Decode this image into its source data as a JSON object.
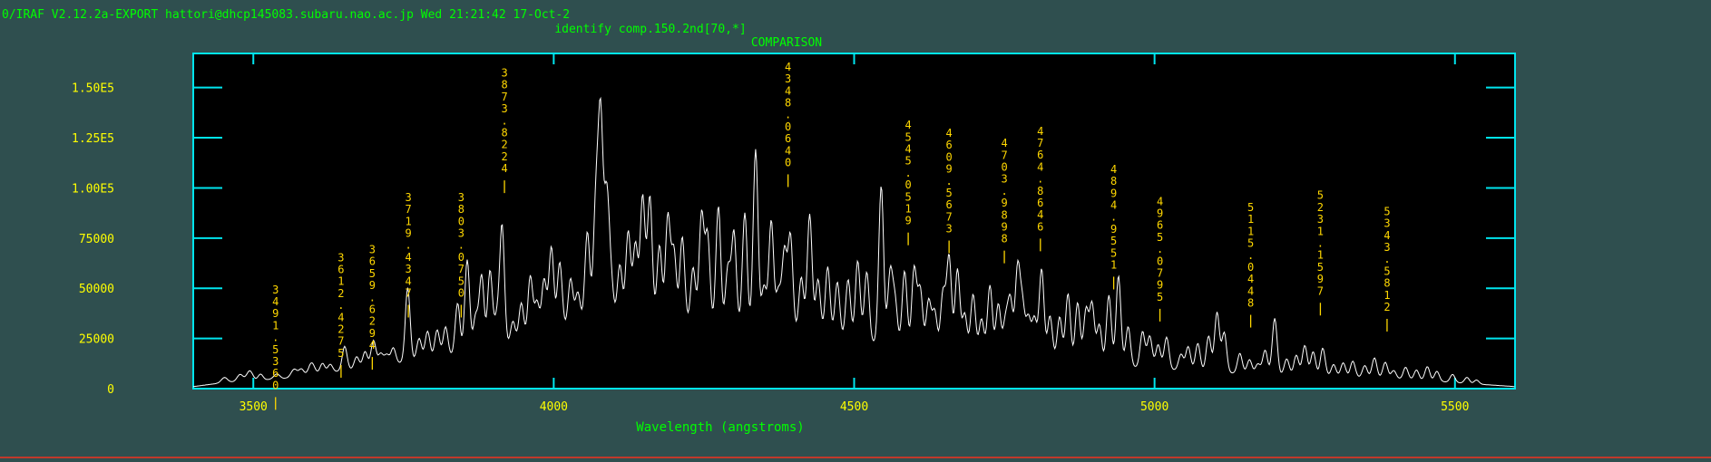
{
  "header": {
    "status_line": "0/IRAF V2.12.2a-EXPORT hattori@dhcp145083.subaru.nao.ac.jp Wed 21:21:42 17-Oct-2",
    "command": "identify comp.150.2nd[70,*]"
  },
  "colors": {
    "background": "#2f4f4f",
    "frame": "#00e5ee",
    "plot_bg": "#000000",
    "spectrum": "#ffffff",
    "header_text": "#00ff00",
    "tick_labels": "#ffff00",
    "line_labels": "#ffd700"
  },
  "chart_data": {
    "type": "line",
    "title": "COMPARISON",
    "xlabel": "Wavelength (angstroms)",
    "ylabel": "",
    "xlim": [
      3400,
      5600
    ],
    "ylim": [
      0,
      167000
    ],
    "x_ticks": [
      3500,
      4000,
      4500,
      5000,
      5500
    ],
    "x_tick_labels": [
      "3500",
      "4000",
      "4500",
      "5000",
      "5500"
    ],
    "y_ticks": [
      0,
      25000,
      50000,
      75000,
      100000,
      125000,
      150000
    ],
    "y_tick_labels": [
      "0",
      "25000",
      "50000",
      "75000",
      "1.00E5",
      "1.25E5",
      "1.50E5"
    ],
    "baseline": [
      [
        3400,
        1000
      ],
      [
        3450,
        3000
      ],
      [
        3500,
        4000
      ],
      [
        3550,
        5000
      ],
      [
        3600,
        7000
      ],
      [
        3650,
        9000
      ],
      [
        3700,
        11000
      ],
      [
        3750,
        13000
      ],
      [
        3800,
        15000
      ],
      [
        3850,
        17000
      ],
      [
        3900,
        19000
      ],
      [
        3950,
        23000
      ],
      [
        4000,
        28000
      ],
      [
        4050,
        33000
      ],
      [
        4100,
        35000
      ],
      [
        4150,
        34000
      ],
      [
        4200,
        33000
      ],
      [
        4250,
        32000
      ],
      [
        4300,
        30000
      ],
      [
        4350,
        29000
      ],
      [
        4400,
        28000
      ],
      [
        4450,
        26000
      ],
      [
        4500,
        24000
      ],
      [
        4550,
        22000
      ],
      [
        4600,
        20000
      ],
      [
        4650,
        18000
      ],
      [
        4700,
        17000
      ],
      [
        4750,
        16000
      ],
      [
        4800,
        15000
      ],
      [
        4850,
        13500
      ],
      [
        4900,
        12000
      ],
      [
        4950,
        11000
      ],
      [
        5000,
        10000
      ],
      [
        5050,
        9000
      ],
      [
        5100,
        8000
      ],
      [
        5150,
        7500
      ],
      [
        5200,
        7000
      ],
      [
        5250,
        6500
      ],
      [
        5300,
        6000
      ],
      [
        5350,
        5500
      ],
      [
        5400,
        5000
      ],
      [
        5450,
        4000
      ],
      [
        5500,
        3000
      ],
      [
        5550,
        2000
      ],
      [
        5600,
        1000
      ]
    ],
    "peaks": [
      [
        3452,
        2500,
        5
      ],
      [
        3478,
        3500,
        5
      ],
      [
        3494,
        5000,
        5
      ],
      [
        3512,
        3000,
        4
      ],
      [
        3539,
        2500,
        5
      ],
      [
        3568,
        4000,
        5
      ],
      [
        3580,
        3500,
        4
      ],
      [
        3597,
        6000,
        5
      ],
      [
        3615,
        5000,
        4
      ],
      [
        3628,
        4000,
        4
      ],
      [
        3652,
        12000,
        4
      ],
      [
        3672,
        6000,
        4
      ],
      [
        3686,
        8000,
        4
      ],
      [
        3700,
        13000,
        4
      ],
      [
        3712,
        6000,
        4
      ],
      [
        3722,
        5000,
        4
      ],
      [
        3733,
        8000,
        4
      ],
      [
        3757,
        37000,
        4
      ],
      [
        3776,
        11000,
        4
      ],
      [
        3790,
        14000,
        4
      ],
      [
        3806,
        14000,
        4
      ],
      [
        3820,
        15000,
        4
      ],
      [
        3840,
        26000,
        4
      ],
      [
        3856,
        47000,
        4
      ],
      [
        3870,
        18000,
        4
      ],
      [
        3880,
        38000,
        4
      ],
      [
        3894,
        40000,
        4
      ],
      [
        3905,
        15000,
        4
      ],
      [
        3914,
        61000,
        4
      ],
      [
        3932,
        12000,
        4
      ],
      [
        3946,
        20000,
        4
      ],
      [
        3961,
        32000,
        4
      ],
      [
        3972,
        18000,
        4
      ],
      [
        3984,
        28000,
        4
      ],
      [
        3996,
        43000,
        4
      ],
      [
        4010,
        34000,
        4
      ],
      [
        4028,
        24000,
        4
      ],
      [
        4040,
        16000,
        4
      ],
      [
        4056,
        45000,
        4
      ],
      [
        4070,
        58000,
        4
      ],
      [
        4078,
        100000,
        4
      ],
      [
        4088,
        60000,
        4
      ],
      [
        4095,
        20000,
        4
      ],
      [
        4110,
        27000,
        4
      ],
      [
        4124,
        44000,
        4
      ],
      [
        4136,
        38000,
        4
      ],
      [
        4148,
        62000,
        4
      ],
      [
        4160,
        62000,
        4
      ],
      [
        4176,
        38000,
        4
      ],
      [
        4190,
        53000,
        4
      ],
      [
        4200,
        36000,
        4
      ],
      [
        4214,
        43000,
        4
      ],
      [
        4232,
        28000,
        4
      ],
      [
        4246,
        55000,
        4
      ],
      [
        4256,
        45000,
        4
      ],
      [
        4274,
        60000,
        4
      ],
      [
        4290,
        30000,
        4
      ],
      [
        4300,
        48000,
        4
      ],
      [
        4318,
        58000,
        4
      ],
      [
        4336,
        90000,
        4
      ],
      [
        4350,
        22000,
        4
      ],
      [
        4362,
        55000,
        4
      ],
      [
        4374,
        20000,
        4
      ],
      [
        4384,
        40000,
        4
      ],
      [
        4394,
        48000,
        4
      ],
      [
        4412,
        28000,
        4
      ],
      [
        4426,
        60000,
        4
      ],
      [
        4440,
        28000,
        4
      ],
      [
        4456,
        35000,
        4
      ],
      [
        4472,
        28000,
        4
      ],
      [
        4490,
        30000,
        4
      ],
      [
        4506,
        40000,
        4
      ],
      [
        4521,
        35000,
        4
      ],
      [
        4545,
        79000,
        4
      ],
      [
        4560,
        36000,
        4
      ],
      [
        4568,
        22000,
        4
      ],
      [
        4584,
        38000,
        4
      ],
      [
        4600,
        40000,
        4
      ],
      [
        4610,
        30000,
        4
      ],
      [
        4624,
        25000,
        4
      ],
      [
        4634,
        20000,
        4
      ],
      [
        4648,
        30000,
        4
      ],
      [
        4658,
        48000,
        4
      ],
      [
        4672,
        42000,
        4
      ],
      [
        4684,
        20000,
        4
      ],
      [
        4698,
        30000,
        4
      ],
      [
        4712,
        18000,
        4
      ],
      [
        4726,
        35000,
        4
      ],
      [
        4740,
        26000,
        4
      ],
      [
        4752,
        18000,
        4
      ],
      [
        4760,
        28000,
        4
      ],
      [
        4772,
        44000,
        4
      ],
      [
        4780,
        26000,
        4
      ],
      [
        4790,
        20000,
        4
      ],
      [
        4800,
        20000,
        4
      ],
      [
        4812,
        45000,
        4
      ],
      [
        4826,
        22000,
        4
      ],
      [
        4842,
        22000,
        4
      ],
      [
        4856,
        34000,
        4
      ],
      [
        4872,
        30000,
        4
      ],
      [
        4886,
        27000,
        4
      ],
      [
        4896,
        30000,
        4
      ],
      [
        4908,
        20000,
        4
      ],
      [
        4924,
        35000,
        4
      ],
      [
        4940,
        45000,
        4
      ],
      [
        4956,
        20000,
        4
      ],
      [
        4980,
        18000,
        4
      ],
      [
        4992,
        16000,
        4
      ],
      [
        5006,
        12000,
        4
      ],
      [
        5020,
        16000,
        4
      ],
      [
        5044,
        8000,
        4
      ],
      [
        5056,
        12000,
        4
      ],
      [
        5072,
        14000,
        4
      ],
      [
        5090,
        18000,
        4
      ],
      [
        5104,
        30000,
        4
      ],
      [
        5116,
        20000,
        4
      ],
      [
        5142,
        10000,
        4
      ],
      [
        5158,
        7000,
        4
      ],
      [
        5172,
        5000,
        4
      ],
      [
        5184,
        12000,
        4
      ],
      [
        5200,
        28000,
        4
      ],
      [
        5220,
        8000,
        4
      ],
      [
        5236,
        10000,
        4
      ],
      [
        5250,
        15000,
        4
      ],
      [
        5264,
        12000,
        4
      ],
      [
        5280,
        14000,
        4
      ],
      [
        5298,
        6000,
        4
      ],
      [
        5314,
        7000,
        4
      ],
      [
        5330,
        8000,
        4
      ],
      [
        5350,
        6000,
        4
      ],
      [
        5366,
        10000,
        4
      ],
      [
        5384,
        8000,
        4
      ],
      [
        5398,
        4000,
        4
      ],
      [
        5418,
        6000,
        4
      ],
      [
        5436,
        5000,
        4
      ],
      [
        5454,
        7000,
        4
      ],
      [
        5470,
        5000,
        4
      ],
      [
        5496,
        4000,
        4
      ],
      [
        5520,
        3000,
        4
      ],
      [
        5536,
        2000,
        4
      ]
    ],
    "line_labels": [
      {
        "wavelength": 3537,
        "label": "3491.5360",
        "level": 52000
      },
      {
        "wavelength": 3646,
        "label": "3612.4275",
        "level": 68000
      },
      {
        "wavelength": 3698,
        "label": "3659.6294",
        "level": 72000
      },
      {
        "wavelength": 3758,
        "label": "3719.4347",
        "level": 98000
      },
      {
        "wavelength": 3846,
        "label": "3803.0750",
        "level": 98000
      },
      {
        "wavelength": 3918,
        "label": "3873.8224",
        "level": 160000
      },
      {
        "wavelength": 4390,
        "label": "4348.0640",
        "level": 163000
      },
      {
        "wavelength": 4590,
        "label": "4545.0519",
        "level": 134000
      },
      {
        "wavelength": 4658,
        "label": "4609.5673",
        "level": 130000
      },
      {
        "wavelength": 4750,
        "label": "4703.9898",
        "level": 125000
      },
      {
        "wavelength": 4810,
        "label": "4764.8646",
        "level": 131000
      },
      {
        "wavelength": 4932,
        "label": "4894.9551",
        "level": 112000
      },
      {
        "wavelength": 5009,
        "label": "4965.0795",
        "level": 96000
      },
      {
        "wavelength": 5160,
        "label": "5115.0448",
        "level": 93000
      },
      {
        "wavelength": 5276,
        "label": "5231.1597",
        "level": 99000
      },
      {
        "wavelength": 5387,
        "label": "5343.5812",
        "level": 91000
      }
    ]
  }
}
